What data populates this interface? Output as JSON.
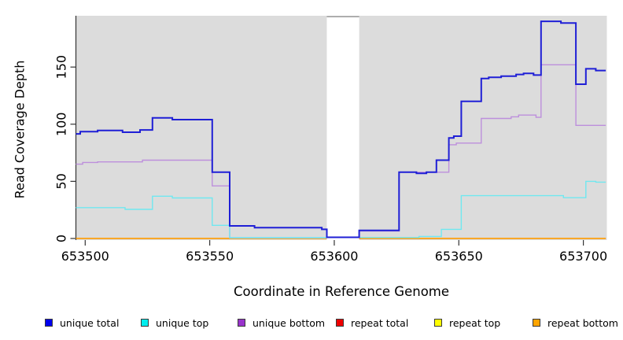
{
  "chart_data": {
    "type": "line",
    "title": "",
    "xlabel": "Coordinate in Reference Genome",
    "ylabel": "Read Coverage Depth",
    "x_ticks": [
      653500,
      653550,
      653600,
      653650,
      653700
    ],
    "y_ticks": [
      0,
      50,
      100,
      150
    ],
    "xlim": [
      653496,
      653709
    ],
    "ylim": [
      0,
      195
    ],
    "grid": false,
    "plot_bg": "#dcdcdc",
    "axis_color": "#333333",
    "gap_region": {
      "x_start": 653597,
      "x_end": 653610,
      "fill": "#ffffff",
      "border_color": "#a3a3a3"
    },
    "legend_position": "bottom",
    "legend": [
      {
        "label": "unique total",
        "color": "#0000ee"
      },
      {
        "label": "unique top",
        "color": "#00eeee"
      },
      {
        "label": "unique bottom",
        "color": "#9933cc"
      },
      {
        "label": "repeat total",
        "color": "#ee0000"
      },
      {
        "label": "repeat top",
        "color": "#ffff00"
      },
      {
        "label": "repeat bottom",
        "color": "#ffa500"
      }
    ],
    "series": [
      {
        "name": "repeat total",
        "color": "#dd4466",
        "width": 1.3,
        "segments": [
          [
            [
              653496,
              0
            ],
            [
              653558,
              0.4
            ],
            [
              653597,
              0.4
            ]
          ],
          [
            [
              653610,
              0
            ],
            [
              653709,
              0
            ]
          ]
        ]
      },
      {
        "name": "repeat top",
        "color": "#eeee55",
        "width": 1.3,
        "segments": [
          [
            [
              653496,
              0
            ],
            [
              653597,
              0
            ]
          ],
          [
            [
              653610,
              0.4
            ],
            [
              653634,
              0
            ],
            [
              653709,
              0
            ]
          ]
        ]
      },
      {
        "name": "repeat bottom",
        "color": "#ff9d00",
        "width": 1.6,
        "segments": [
          [
            [
              653496,
              0
            ],
            [
              653597,
              0
            ]
          ],
          [
            [
              653610,
              0
            ],
            [
              653709,
              0
            ]
          ]
        ]
      },
      {
        "name": "unique bottom",
        "color": "#bd8fdc",
        "width": 1.4,
        "segments": [
          [
            [
              653496,
              65
            ],
            [
              653499,
              66.5
            ],
            [
              653505,
              67
            ],
            [
              653523,
              68.5
            ],
            [
              653551,
              46
            ],
            [
              653558,
              0.5
            ],
            [
              653597,
              0.5
            ]
          ],
          [
            [
              653610,
              6.5
            ],
            [
              653626,
              58
            ],
            [
              653646,
              82
            ],
            [
              653649,
              83.5
            ],
            [
              653659,
              105
            ],
            [
              653671,
              106.5
            ],
            [
              653674,
              108
            ],
            [
              653681,
              106
            ],
            [
              653683,
              152
            ],
            [
              653697,
              99
            ],
            [
              653709,
              99
            ]
          ]
        ]
      },
      {
        "name": "unique top",
        "color": "#70e8f0",
        "width": 1.4,
        "segments": [
          [
            [
              653496,
              27
            ],
            [
              653516,
              25.5
            ],
            [
              653527,
              37
            ],
            [
              653535,
              35.5
            ],
            [
              653551,
              11.5
            ],
            [
              653558,
              0.7
            ],
            [
              653597,
              0.7
            ]
          ],
          [
            [
              653610,
              0.8
            ],
            [
              653634,
              1.8
            ],
            [
              653643,
              8
            ],
            [
              653651,
              37.5
            ],
            [
              653692,
              35.7
            ],
            [
              653701,
              50
            ],
            [
              653705,
              49.3
            ],
            [
              653709,
              49.3
            ]
          ]
        ]
      },
      {
        "name": "unique total",
        "color": "#1f1fd6",
        "width": 2,
        "segments": [
          [
            [
              653496,
              91.5
            ],
            [
              653498,
              93.5
            ],
            [
              653505,
              94.5
            ],
            [
              653515,
              93
            ],
            [
              653522,
              95
            ],
            [
              653527,
              105.5
            ],
            [
              653535,
              104
            ],
            [
              653551,
              58
            ],
            [
              653558,
              11
            ],
            [
              653568,
              9.5
            ],
            [
              653595,
              8
            ],
            [
              653597,
              1
            ],
            [
              653610,
              7
            ],
            [
              653626,
              58
            ],
            [
              653633,
              57
            ],
            [
              653637,
              58
            ],
            [
              653641,
              68.5
            ],
            [
              653646,
              88
            ],
            [
              653648,
              89.5
            ],
            [
              653651,
              120
            ],
            [
              653659,
              140
            ],
            [
              653662,
              141
            ],
            [
              653667,
              142
            ],
            [
              653673,
              143.5
            ],
            [
              653676,
              144.5
            ],
            [
              653680,
              143
            ],
            [
              653683,
              190
            ],
            [
              653691,
              188.5
            ],
            [
              653697,
              135
            ],
            [
              653701,
              148.5
            ],
            [
              653705,
              147
            ],
            [
              653709,
              147
            ]
          ]
        ]
      }
    ]
  }
}
